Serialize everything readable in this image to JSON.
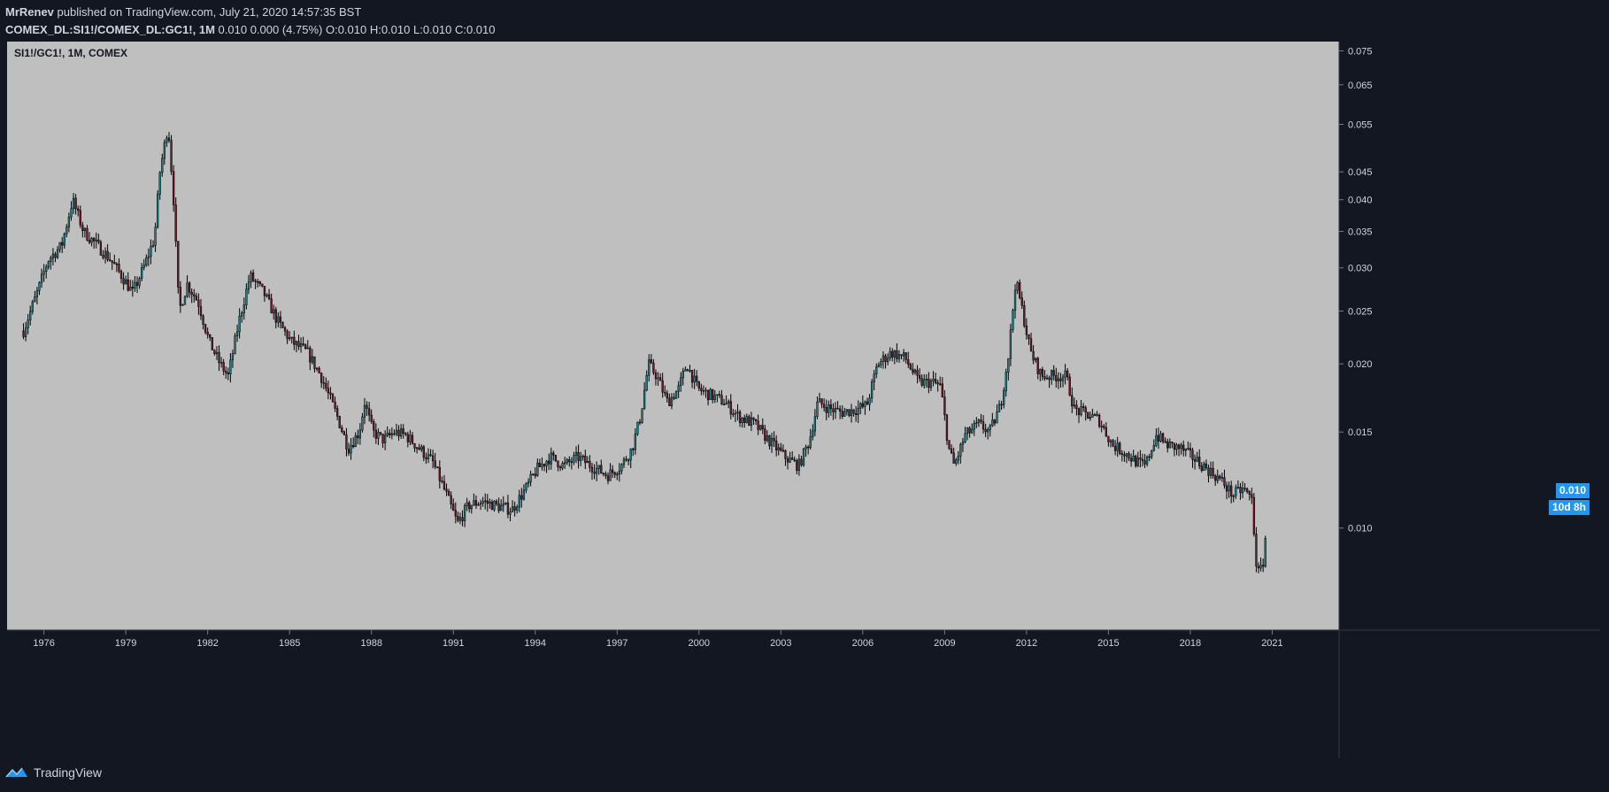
{
  "header": {
    "publisher_user": "MrRenev",
    "publisher_rest": " published on TradingView.com, July 21, 2020 14:57:35 BST",
    "symbol_full": "COMEX_DL:SI1!/COMEX_DL:GC1!, 1M",
    "ohlc_text": "0.010 0.000 (4.75%) O:0.010 H:0.010 L:0.010 C:0.010"
  },
  "legend": {
    "symbol": "SI1!/GC1!, 1M, COMEX"
  },
  "price_tags": {
    "last_price": "0.010",
    "countdown": "10d 8h"
  },
  "footer": {
    "brand": "TradingView"
  },
  "colors": {
    "background": "#131722",
    "plot_background": "#bfbfbf",
    "candle_up": "#1e7f86",
    "candle_down": "#6b1a2a",
    "wick": "#000000",
    "accent": "#2196f3"
  },
  "chart_data": {
    "type": "candlestick",
    "title": "SI1!/GC1!, 1M, COMEX",
    "xlabel": "",
    "ylabel": "",
    "y_scale": "log",
    "ylim": [
      0.0065,
      0.078
    ],
    "xlim": [
      1974.4,
      2023.2
    ],
    "x_ticks": [
      "1976",
      "1979",
      "1982",
      "1985",
      "1988",
      "1991",
      "1994",
      "1997",
      "2000",
      "2003",
      "2006",
      "2009",
      "2012",
      "2015",
      "2018",
      "2021"
    ],
    "y_ticks": [
      "0.075",
      "0.065",
      "0.055",
      "0.045",
      "0.040",
      "0.035",
      "0.030",
      "0.025",
      "0.020",
      "0.015",
      "0.010"
    ],
    "series": [
      {
        "name": "SI1!/GC1!",
        "points_approx_close": [
          [
            1975.0,
            0.023
          ],
          [
            1975.5,
            0.027
          ],
          [
            1975.9,
            0.031
          ],
          [
            1976.4,
            0.033
          ],
          [
            1976.8,
            0.04
          ],
          [
            1977.2,
            0.035
          ],
          [
            1977.7,
            0.033
          ],
          [
            1978.2,
            0.031
          ],
          [
            1978.6,
            0.029
          ],
          [
            1979.0,
            0.027
          ],
          [
            1979.4,
            0.03
          ],
          [
            1979.8,
            0.034
          ],
          [
            1980.0,
            0.045
          ],
          [
            1980.3,
            0.055
          ],
          [
            1980.5,
            0.04
          ],
          [
            1980.7,
            0.025
          ],
          [
            1981.0,
            0.028
          ],
          [
            1981.4,
            0.026
          ],
          [
            1981.8,
            0.022
          ],
          [
            1982.2,
            0.02
          ],
          [
            1982.5,
            0.019
          ],
          [
            1982.9,
            0.024
          ],
          [
            1983.3,
            0.029
          ],
          [
            1983.8,
            0.027
          ],
          [
            1984.3,
            0.024
          ],
          [
            1984.8,
            0.022
          ],
          [
            1985.4,
            0.021
          ],
          [
            1985.9,
            0.019
          ],
          [
            1986.5,
            0.016
          ],
          [
            1986.9,
            0.014
          ],
          [
            1987.3,
            0.015
          ],
          [
            1987.5,
            0.017
          ],
          [
            1987.8,
            0.015
          ],
          [
            1988.2,
            0.0145
          ],
          [
            1988.6,
            0.015
          ],
          [
            1989.0,
            0.0148
          ],
          [
            1989.5,
            0.014
          ],
          [
            1990.0,
            0.0132
          ],
          [
            1990.5,
            0.0115
          ],
          [
            1990.9,
            0.0102
          ],
          [
            1991.3,
            0.011
          ],
          [
            1991.8,
            0.0112
          ],
          [
            1992.3,
            0.011
          ],
          [
            1992.9,
            0.0108
          ],
          [
            1993.4,
            0.0118
          ],
          [
            1993.8,
            0.0128
          ],
          [
            1994.3,
            0.0135
          ],
          [
            1994.8,
            0.013
          ],
          [
            1995.3,
            0.0135
          ],
          [
            1995.8,
            0.013
          ],
          [
            1996.4,
            0.0125
          ],
          [
            1996.9,
            0.013
          ],
          [
            1997.3,
            0.014
          ],
          [
            1997.6,
            0.016
          ],
          [
            1997.9,
            0.02
          ],
          [
            1998.2,
            0.019
          ],
          [
            1998.6,
            0.017
          ],
          [
            1999.0,
            0.018
          ],
          [
            1999.3,
            0.02
          ],
          [
            1999.7,
            0.018
          ],
          [
            2000.2,
            0.0175
          ],
          [
            2000.7,
            0.017
          ],
          [
            2001.2,
            0.016
          ],
          [
            2001.8,
            0.0155
          ],
          [
            2002.3,
            0.0145
          ],
          [
            2002.9,
            0.0135
          ],
          [
            2003.4,
            0.013
          ],
          [
            2003.8,
            0.0145
          ],
          [
            2004.1,
            0.017
          ],
          [
            2004.6,
            0.0165
          ],
          [
            2005.0,
            0.0163
          ],
          [
            2005.5,
            0.0165
          ],
          [
            2005.9,
            0.0168
          ],
          [
            2006.3,
            0.02
          ],
          [
            2006.8,
            0.021
          ],
          [
            2007.3,
            0.0205
          ],
          [
            2007.8,
            0.0185
          ],
          [
            2008.3,
            0.0185
          ],
          [
            2008.6,
            0.0182
          ],
          [
            2008.9,
            0.014
          ],
          [
            2009.1,
            0.013
          ],
          [
            2009.5,
            0.0148
          ],
          [
            2010.0,
            0.0155
          ],
          [
            2010.4,
            0.015
          ],
          [
            2010.8,
            0.0168
          ],
          [
            2011.1,
            0.021
          ],
          [
            2011.35,
            0.0285
          ],
          [
            2011.6,
            0.025
          ],
          [
            2011.9,
            0.021
          ],
          [
            2012.3,
            0.019
          ],
          [
            2012.8,
            0.019
          ],
          [
            2013.2,
            0.019
          ],
          [
            2013.5,
            0.0165
          ],
          [
            2013.9,
            0.0162
          ],
          [
            2014.4,
            0.0158
          ],
          [
            2014.9,
            0.0142
          ],
          [
            2015.3,
            0.0138
          ],
          [
            2015.8,
            0.0132
          ],
          [
            2016.1,
            0.013
          ],
          [
            2016.5,
            0.0148
          ],
          [
            2016.9,
            0.0142
          ],
          [
            2017.4,
            0.014
          ],
          [
            2017.9,
            0.0134
          ],
          [
            2018.4,
            0.0128
          ],
          [
            2018.9,
            0.0122
          ],
          [
            2019.3,
            0.0115
          ],
          [
            2019.7,
            0.0118
          ],
          [
            2020.0,
            0.0113
          ],
          [
            2020.2,
            0.0082
          ],
          [
            2020.4,
            0.0085
          ],
          [
            2020.55,
            0.0102
          ]
        ]
      }
    ],
    "last_value": 0.01,
    "grid": false,
    "legend_position": "top-left"
  }
}
